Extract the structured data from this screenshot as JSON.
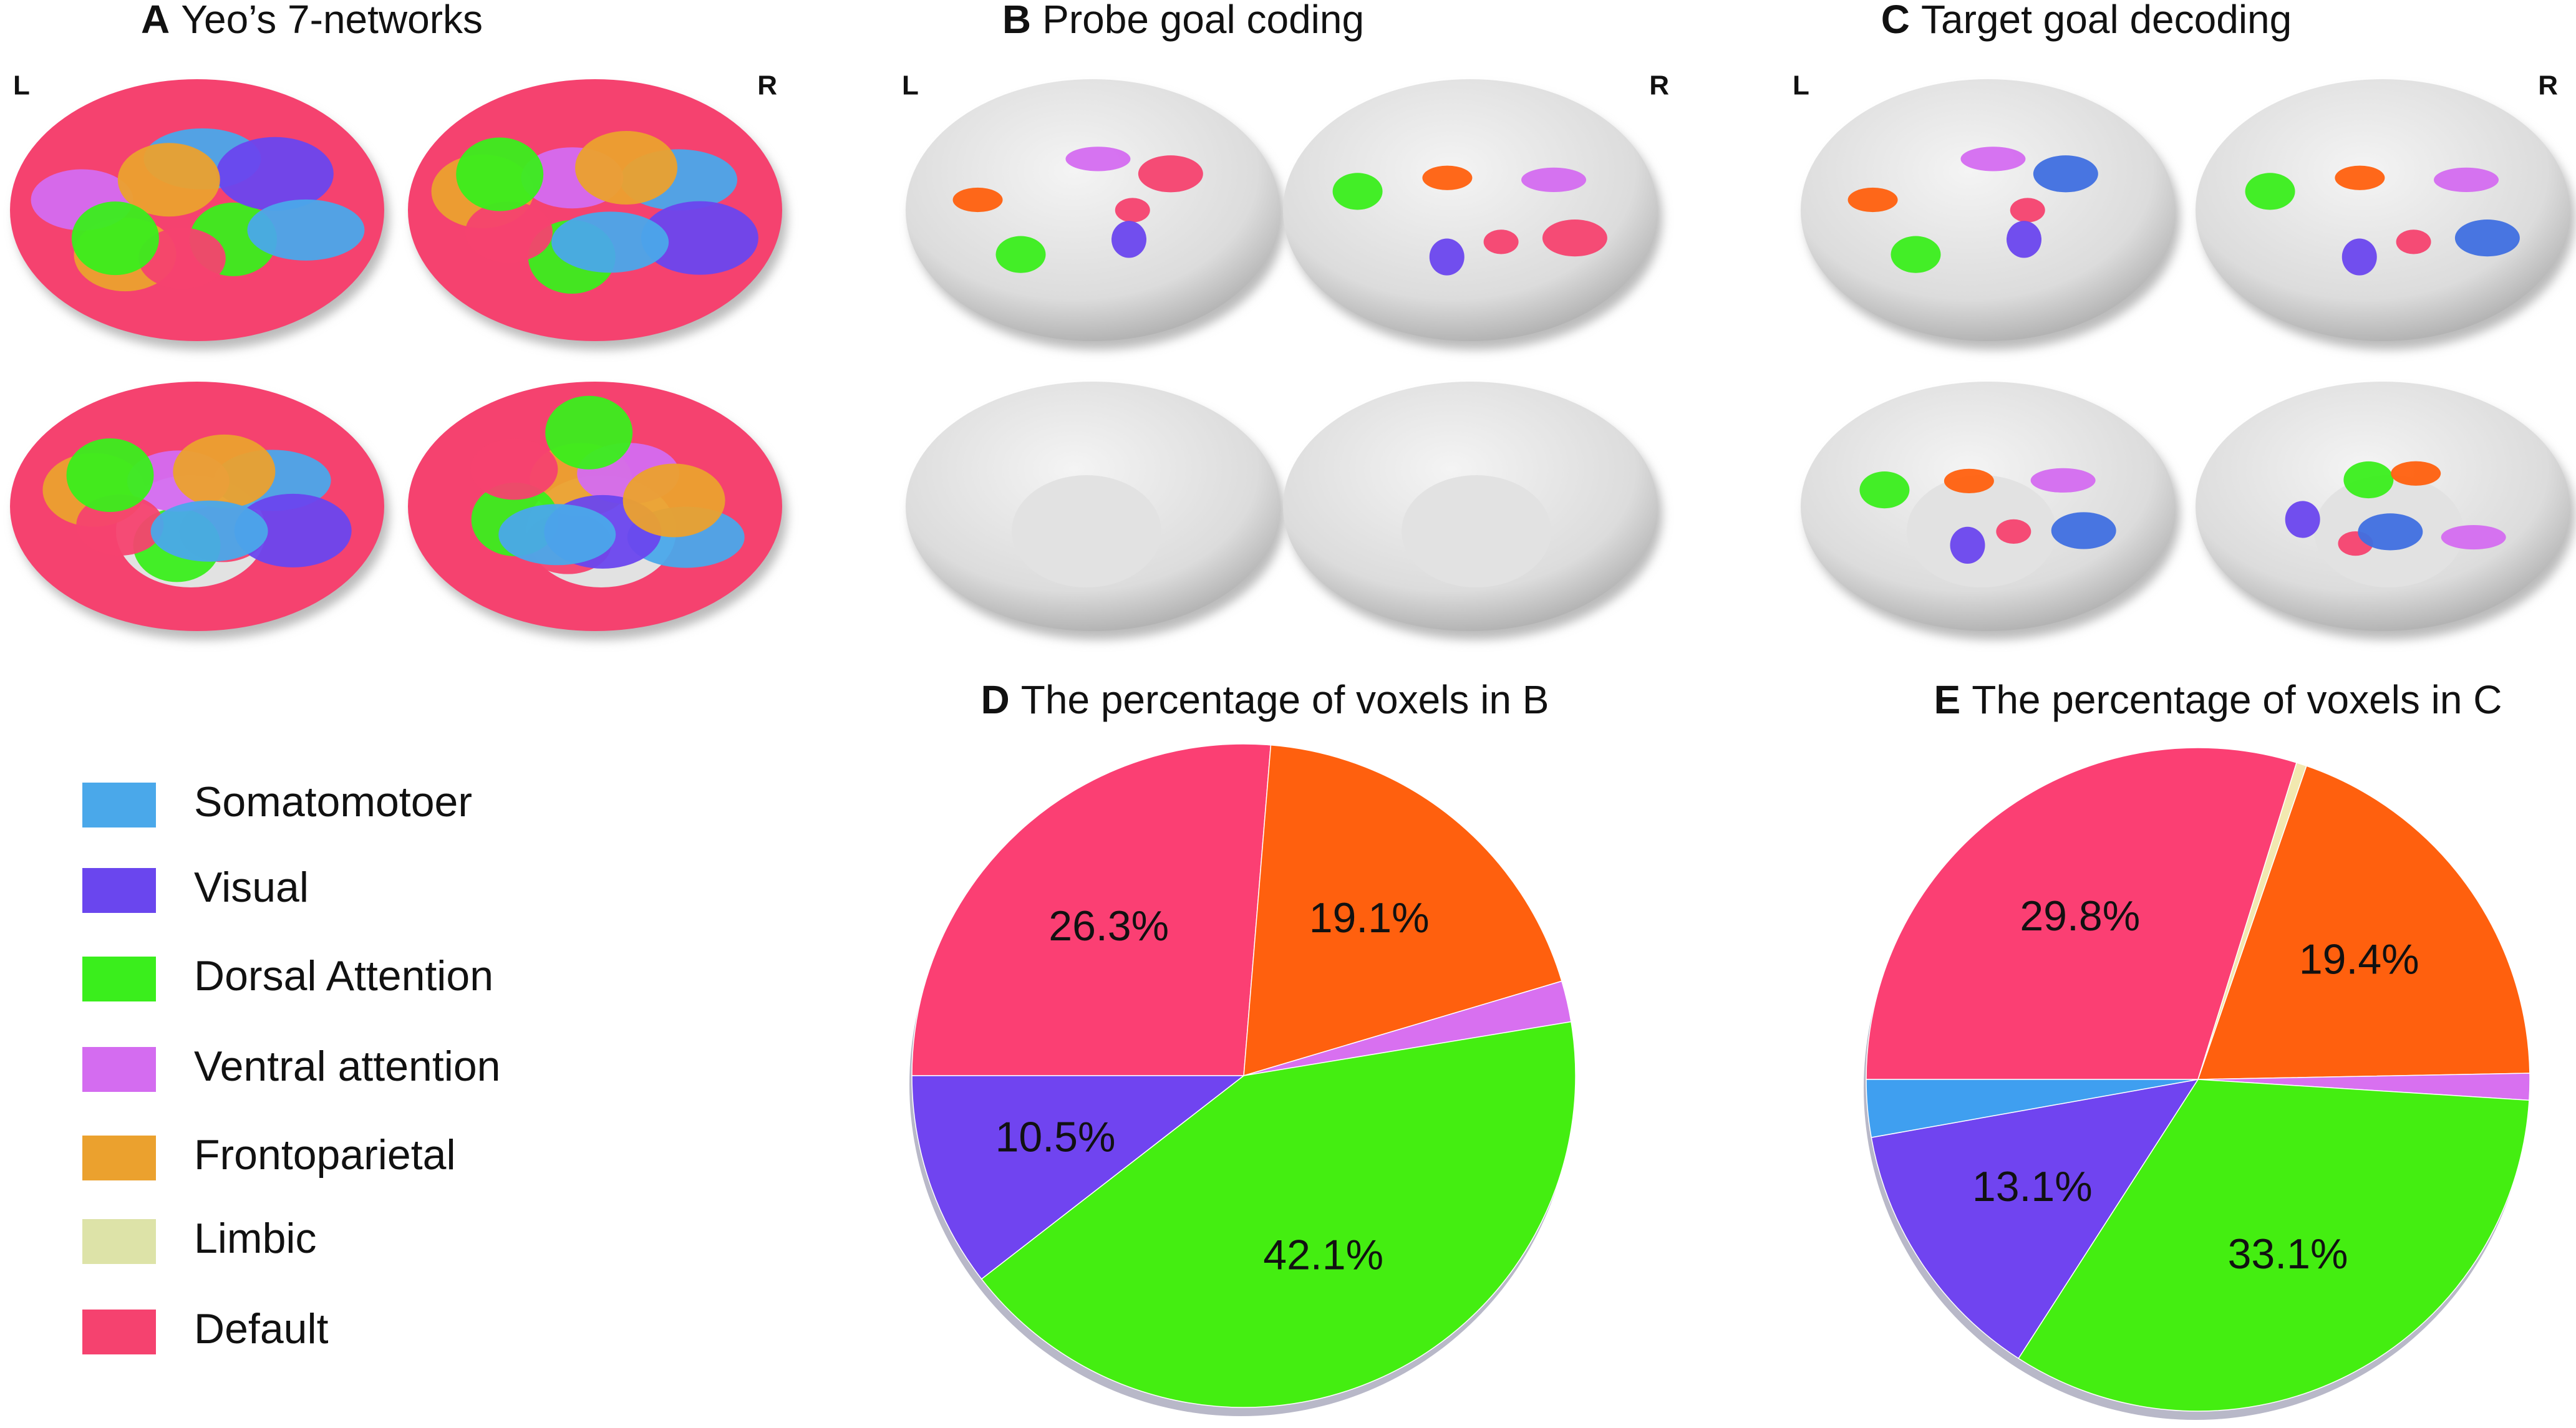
{
  "panels": [
    {
      "label": "A",
      "title": "Yeo’s 7-networks",
      "left": "L",
      "right": "R"
    },
    {
      "label": "B",
      "title": "Probe goal coding",
      "left": "L",
      "right": "R"
    },
    {
      "label": "C",
      "title": "Target goal decoding",
      "left": "L",
      "right": "R"
    }
  ],
  "legend": [
    {
      "name": "Somatomotoer",
      "color": "#4aa8ea"
    },
    {
      "name": "Visual",
      "color": "#6a46ee"
    },
    {
      "name": "Dorsal Attention",
      "color": "#3aee1c"
    },
    {
      "name": "Ventral attention",
      "color": "#d46cf0"
    },
    {
      "name": "Frontoparietal",
      "color": "#eba12e"
    },
    {
      "name": "Limbic",
      "color": "#dde3a8"
    },
    {
      "name": "Default",
      "color": "#f5426f"
    }
  ],
  "chart_data": [
    {
      "type": "pie",
      "label": "D",
      "title": "The percentage of voxels in B",
      "values": [
        26.3,
        19.1,
        2.0,
        42.1,
        10.5
      ],
      "value_labels": [
        "26.3%",
        "19.1%",
        null,
        "42.1%",
        "10.5%"
      ],
      "colors": [
        "#fb3f73",
        "#ff600e",
        "#d870f0",
        "#44ee11",
        "#7044f0"
      ]
    },
    {
      "type": "pie",
      "label": "E",
      "title": "The percentage of voxels in C",
      "values": [
        29.8,
        0.5,
        19.4,
        1.3,
        33.1,
        13.1,
        2.8
      ],
      "value_labels": [
        "29.8%",
        null,
        "19.4%",
        null,
        "33.1%",
        "13.1%",
        null
      ],
      "colors": [
        "#fb3f73",
        "#f2e8b0",
        "#ff600e",
        "#d870f0",
        "#44ee11",
        "#7044f0",
        "#3f9ff0"
      ]
    }
  ]
}
